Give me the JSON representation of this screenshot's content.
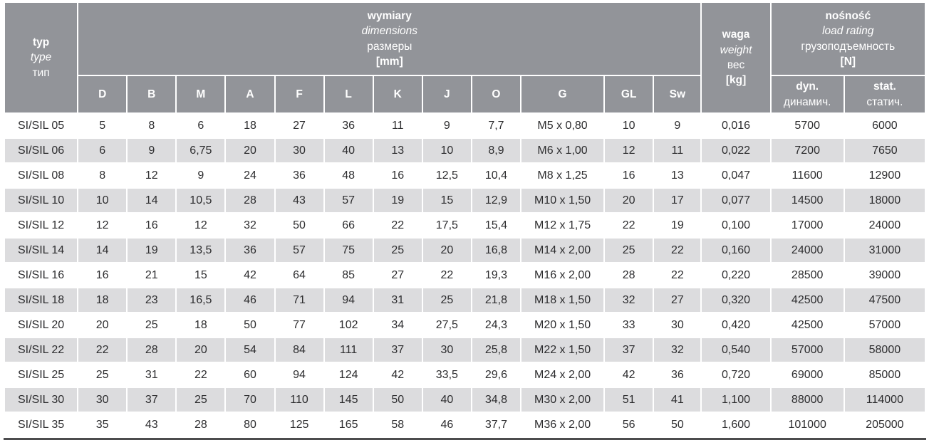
{
  "colors": {
    "header_bg": "#929499",
    "stripe_bg": "#dcdcde",
    "text": "#2d2d2f",
    "header_text": "#ffffff",
    "bottom_border": "#4c4c4e"
  },
  "table": {
    "type_header": {
      "pl": "typ",
      "en": "type",
      "ru": "тип"
    },
    "dimensions_header": {
      "pl": "wymiary",
      "en": "dimensions",
      "ru": "размеры",
      "unit": "[mm]"
    },
    "weight_header": {
      "pl": "waga",
      "en": "weight",
      "ru": "вес",
      "unit": "[kg]"
    },
    "load_header": {
      "pl": "nośność",
      "en": "load rating",
      "ru": "грузоподъемность",
      "unit": "[N]"
    },
    "dim_columns": [
      "D",
      "B",
      "M",
      "A",
      "F",
      "L",
      "K",
      "J",
      "O",
      "G",
      "GL",
      "Sw"
    ],
    "dyn_header": {
      "en": "dyn.",
      "ru": "динамич."
    },
    "stat_header": {
      "en": "stat.",
      "ru": "статич."
    },
    "rows": [
      {
        "type": "SI/SIL 05",
        "dims": [
          "5",
          "8",
          "6",
          "18",
          "27",
          "36",
          "11",
          "9",
          "7,7",
          "M5 x 0,80",
          "10",
          "9"
        ],
        "weight": "0,016",
        "dyn": "5700",
        "stat": "6000"
      },
      {
        "type": "SI/SIL 06",
        "dims": [
          "6",
          "9",
          "6,75",
          "20",
          "30",
          "40",
          "13",
          "10",
          "8,9",
          "M6 x 1,00",
          "12",
          "11"
        ],
        "weight": "0,022",
        "dyn": "7200",
        "stat": "7650"
      },
      {
        "type": "SI/SIL 08",
        "dims": [
          "8",
          "12",
          "9",
          "24",
          "36",
          "48",
          "16",
          "12,5",
          "10,4",
          "M8 x 1,25",
          "16",
          "13"
        ],
        "weight": "0,047",
        "dyn": "11600",
        "stat": "12900"
      },
      {
        "type": "SI/SIL 10",
        "dims": [
          "10",
          "14",
          "10,5",
          "28",
          "43",
          "57",
          "19",
          "15",
          "12,9",
          "M10 x 1,50",
          "20",
          "17"
        ],
        "weight": "0,077",
        "dyn": "14500",
        "stat": "18000"
      },
      {
        "type": "SI/SIL 12",
        "dims": [
          "12",
          "16",
          "12",
          "32",
          "50",
          "66",
          "22",
          "17,5",
          "15,4",
          "M12 x 1,75",
          "22",
          "19"
        ],
        "weight": "0,100",
        "dyn": "17000",
        "stat": "24000"
      },
      {
        "type": "SI/SIL 14",
        "dims": [
          "14",
          "19",
          "13,5",
          "36",
          "57",
          "75",
          "25",
          "20",
          "16,8",
          "M14 x 2,00",
          "25",
          "22"
        ],
        "weight": "0,160",
        "dyn": "24000",
        "stat": "31000"
      },
      {
        "type": "SI/SIL 16",
        "dims": [
          "16",
          "21",
          "15",
          "42",
          "64",
          "85",
          "27",
          "22",
          "19,3",
          "M16 x 2,00",
          "28",
          "22"
        ],
        "weight": "0,220",
        "dyn": "28500",
        "stat": "39000"
      },
      {
        "type": "SI/SIL 18",
        "dims": [
          "18",
          "23",
          "16,5",
          "46",
          "71",
          "94",
          "31",
          "25",
          "21,8",
          "M18 x 1,50",
          "32",
          "27"
        ],
        "weight": "0,320",
        "dyn": "42500",
        "stat": "47500"
      },
      {
        "type": "SI/SIL 20",
        "dims": [
          "20",
          "25",
          "18",
          "50",
          "77",
          "102",
          "34",
          "27,5",
          "24,3",
          "M20 x 1,50",
          "33",
          "30"
        ],
        "weight": "0,420",
        "dyn": "42500",
        "stat": "57000"
      },
      {
        "type": "SI/SIL 22",
        "dims": [
          "22",
          "28",
          "20",
          "54",
          "84",
          "111",
          "37",
          "30",
          "25,8",
          "M22 x 1,50",
          "37",
          "32"
        ],
        "weight": "0,540",
        "dyn": "57000",
        "stat": "58000"
      },
      {
        "type": "SI/SIL 25",
        "dims": [
          "25",
          "31",
          "22",
          "60",
          "94",
          "124",
          "42",
          "33,5",
          "29,6",
          "M24 x 2,00",
          "42",
          "36"
        ],
        "weight": "0,720",
        "dyn": "69000",
        "stat": "85000"
      },
      {
        "type": "SI/SIL 30",
        "dims": [
          "30",
          "37",
          "25",
          "70",
          "110",
          "145",
          "50",
          "40",
          "34,8",
          "M30 x 2,00",
          "51",
          "41"
        ],
        "weight": "1,100",
        "dyn": "88000",
        "stat": "114000"
      },
      {
        "type": "SI/SIL 35",
        "dims": [
          "35",
          "43",
          "28",
          "80",
          "125",
          "165",
          "58",
          "46",
          "37,7",
          "M36 x 2,00",
          "56",
          "50"
        ],
        "weight": "1,600",
        "dyn": "101000",
        "stat": "205000"
      }
    ]
  }
}
